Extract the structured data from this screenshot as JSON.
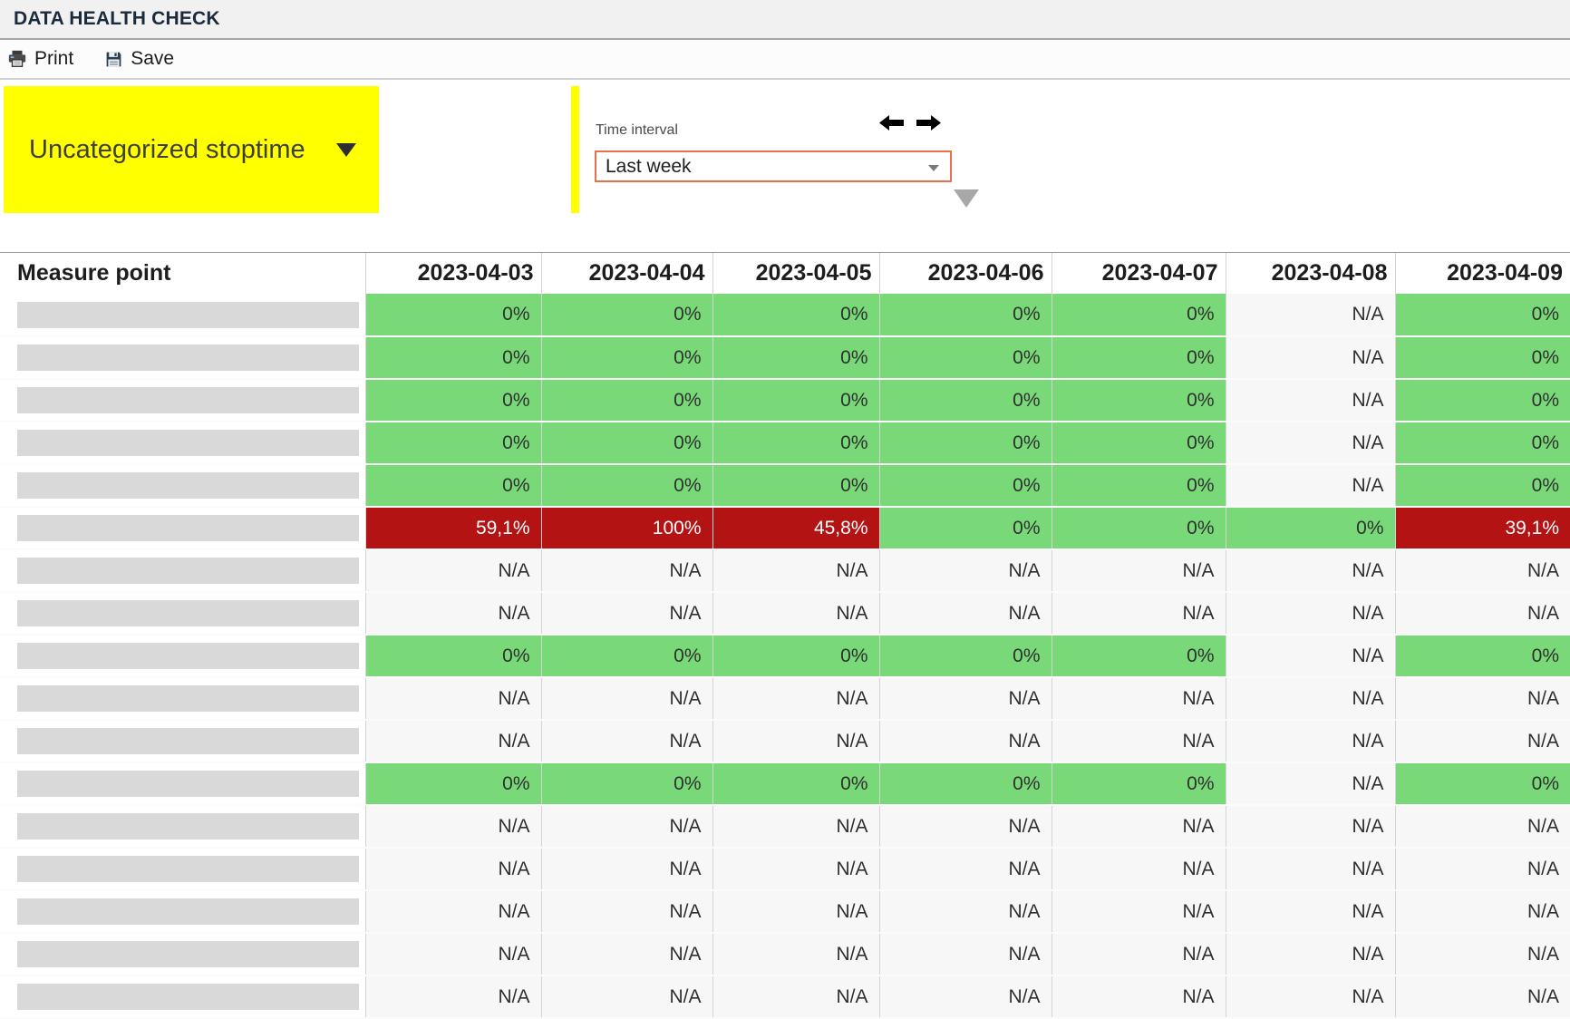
{
  "header": {
    "title": "DATA HEALTH CHECK"
  },
  "toolbar": {
    "print_label": "Print",
    "save_label": "Save",
    "icons": [
      "printer-icon",
      "save-floppy-icon"
    ]
  },
  "filters": {
    "category": {
      "label": "Uncategorized stoptime",
      "caret_icon": "chevron-down-icon",
      "bg_color": "#ffff00"
    },
    "time_interval": {
      "label": "Time interval",
      "selected": "Last week",
      "prev_icon": "arrow-left-icon",
      "next_icon": "arrow-right-icon",
      "select_border_color": "#e8714a"
    }
  },
  "colors": {
    "status_ok": "#79d979",
    "status_alert": "#b31313",
    "status_na": "#f7f7f7",
    "redacted_box": "#d9d9d9",
    "accent_yellow": "#ffff00",
    "title_text": "#1b2b3b"
  },
  "table": {
    "measure_point_header": "Measure point",
    "date_columns": [
      "2023-04-03",
      "2023-04-04",
      "2023-04-05",
      "2023-04-06",
      "2023-04-07",
      "2023-04-08",
      "2023-04-09"
    ],
    "rows": [
      {
        "cells": [
          [
            "0%",
            "ok"
          ],
          [
            "0%",
            "ok"
          ],
          [
            "0%",
            "ok"
          ],
          [
            "0%",
            "ok"
          ],
          [
            "0%",
            "ok"
          ],
          [
            "N/A",
            "na"
          ],
          [
            "0%",
            "ok"
          ]
        ]
      },
      {
        "cells": [
          [
            "0%",
            "ok"
          ],
          [
            "0%",
            "ok"
          ],
          [
            "0%",
            "ok"
          ],
          [
            "0%",
            "ok"
          ],
          [
            "0%",
            "ok"
          ],
          [
            "N/A",
            "na"
          ],
          [
            "0%",
            "ok"
          ]
        ]
      },
      {
        "cells": [
          [
            "0%",
            "ok"
          ],
          [
            "0%",
            "ok"
          ],
          [
            "0%",
            "ok"
          ],
          [
            "0%",
            "ok"
          ],
          [
            "0%",
            "ok"
          ],
          [
            "N/A",
            "na"
          ],
          [
            "0%",
            "ok"
          ]
        ]
      },
      {
        "cells": [
          [
            "0%",
            "ok"
          ],
          [
            "0%",
            "ok"
          ],
          [
            "0%",
            "ok"
          ],
          [
            "0%",
            "ok"
          ],
          [
            "0%",
            "ok"
          ],
          [
            "N/A",
            "na"
          ],
          [
            "0%",
            "ok"
          ]
        ]
      },
      {
        "cells": [
          [
            "0%",
            "ok"
          ],
          [
            "0%",
            "ok"
          ],
          [
            "0%",
            "ok"
          ],
          [
            "0%",
            "ok"
          ],
          [
            "0%",
            "ok"
          ],
          [
            "N/A",
            "na"
          ],
          [
            "0%",
            "ok"
          ]
        ]
      },
      {
        "cells": [
          [
            "59,1%",
            "alert"
          ],
          [
            "100%",
            "alert"
          ],
          [
            "45,8%",
            "alert"
          ],
          [
            "0%",
            "ok"
          ],
          [
            "0%",
            "ok"
          ],
          [
            "0%",
            "ok"
          ],
          [
            "39,1%",
            "alert"
          ]
        ]
      },
      {
        "cells": [
          [
            "N/A",
            "na"
          ],
          [
            "N/A",
            "na"
          ],
          [
            "N/A",
            "na"
          ],
          [
            "N/A",
            "na"
          ],
          [
            "N/A",
            "na"
          ],
          [
            "N/A",
            "na"
          ],
          [
            "N/A",
            "na"
          ]
        ]
      },
      {
        "cells": [
          [
            "N/A",
            "na"
          ],
          [
            "N/A",
            "na"
          ],
          [
            "N/A",
            "na"
          ],
          [
            "N/A",
            "na"
          ],
          [
            "N/A",
            "na"
          ],
          [
            "N/A",
            "na"
          ],
          [
            "N/A",
            "na"
          ]
        ]
      },
      {
        "cells": [
          [
            "0%",
            "ok"
          ],
          [
            "0%",
            "ok"
          ],
          [
            "0%",
            "ok"
          ],
          [
            "0%",
            "ok"
          ],
          [
            "0%",
            "ok"
          ],
          [
            "N/A",
            "na"
          ],
          [
            "0%",
            "ok"
          ]
        ]
      },
      {
        "cells": [
          [
            "N/A",
            "na"
          ],
          [
            "N/A",
            "na"
          ],
          [
            "N/A",
            "na"
          ],
          [
            "N/A",
            "na"
          ],
          [
            "N/A",
            "na"
          ],
          [
            "N/A",
            "na"
          ],
          [
            "N/A",
            "na"
          ]
        ]
      },
      {
        "cells": [
          [
            "N/A",
            "na"
          ],
          [
            "N/A",
            "na"
          ],
          [
            "N/A",
            "na"
          ],
          [
            "N/A",
            "na"
          ],
          [
            "N/A",
            "na"
          ],
          [
            "N/A",
            "na"
          ],
          [
            "N/A",
            "na"
          ]
        ]
      },
      {
        "cells": [
          [
            "0%",
            "ok"
          ],
          [
            "0%",
            "ok"
          ],
          [
            "0%",
            "ok"
          ],
          [
            "0%",
            "ok"
          ],
          [
            "0%",
            "ok"
          ],
          [
            "N/A",
            "na"
          ],
          [
            "0%",
            "ok"
          ]
        ]
      },
      {
        "cells": [
          [
            "N/A",
            "na"
          ],
          [
            "N/A",
            "na"
          ],
          [
            "N/A",
            "na"
          ],
          [
            "N/A",
            "na"
          ],
          [
            "N/A",
            "na"
          ],
          [
            "N/A",
            "na"
          ],
          [
            "N/A",
            "na"
          ]
        ]
      },
      {
        "cells": [
          [
            "N/A",
            "na"
          ],
          [
            "N/A",
            "na"
          ],
          [
            "N/A",
            "na"
          ],
          [
            "N/A",
            "na"
          ],
          [
            "N/A",
            "na"
          ],
          [
            "N/A",
            "na"
          ],
          [
            "N/A",
            "na"
          ]
        ]
      },
      {
        "cells": [
          [
            "N/A",
            "na"
          ],
          [
            "N/A",
            "na"
          ],
          [
            "N/A",
            "na"
          ],
          [
            "N/A",
            "na"
          ],
          [
            "N/A",
            "na"
          ],
          [
            "N/A",
            "na"
          ],
          [
            "N/A",
            "na"
          ]
        ]
      },
      {
        "cells": [
          [
            "N/A",
            "na"
          ],
          [
            "N/A",
            "na"
          ],
          [
            "N/A",
            "na"
          ],
          [
            "N/A",
            "na"
          ],
          [
            "N/A",
            "na"
          ],
          [
            "N/A",
            "na"
          ],
          [
            "N/A",
            "na"
          ]
        ]
      },
      {
        "cells": [
          [
            "N/A",
            "na"
          ],
          [
            "N/A",
            "na"
          ],
          [
            "N/A",
            "na"
          ],
          [
            "N/A",
            "na"
          ],
          [
            "N/A",
            "na"
          ],
          [
            "N/A",
            "na"
          ],
          [
            "N/A",
            "na"
          ]
        ]
      }
    ]
  }
}
